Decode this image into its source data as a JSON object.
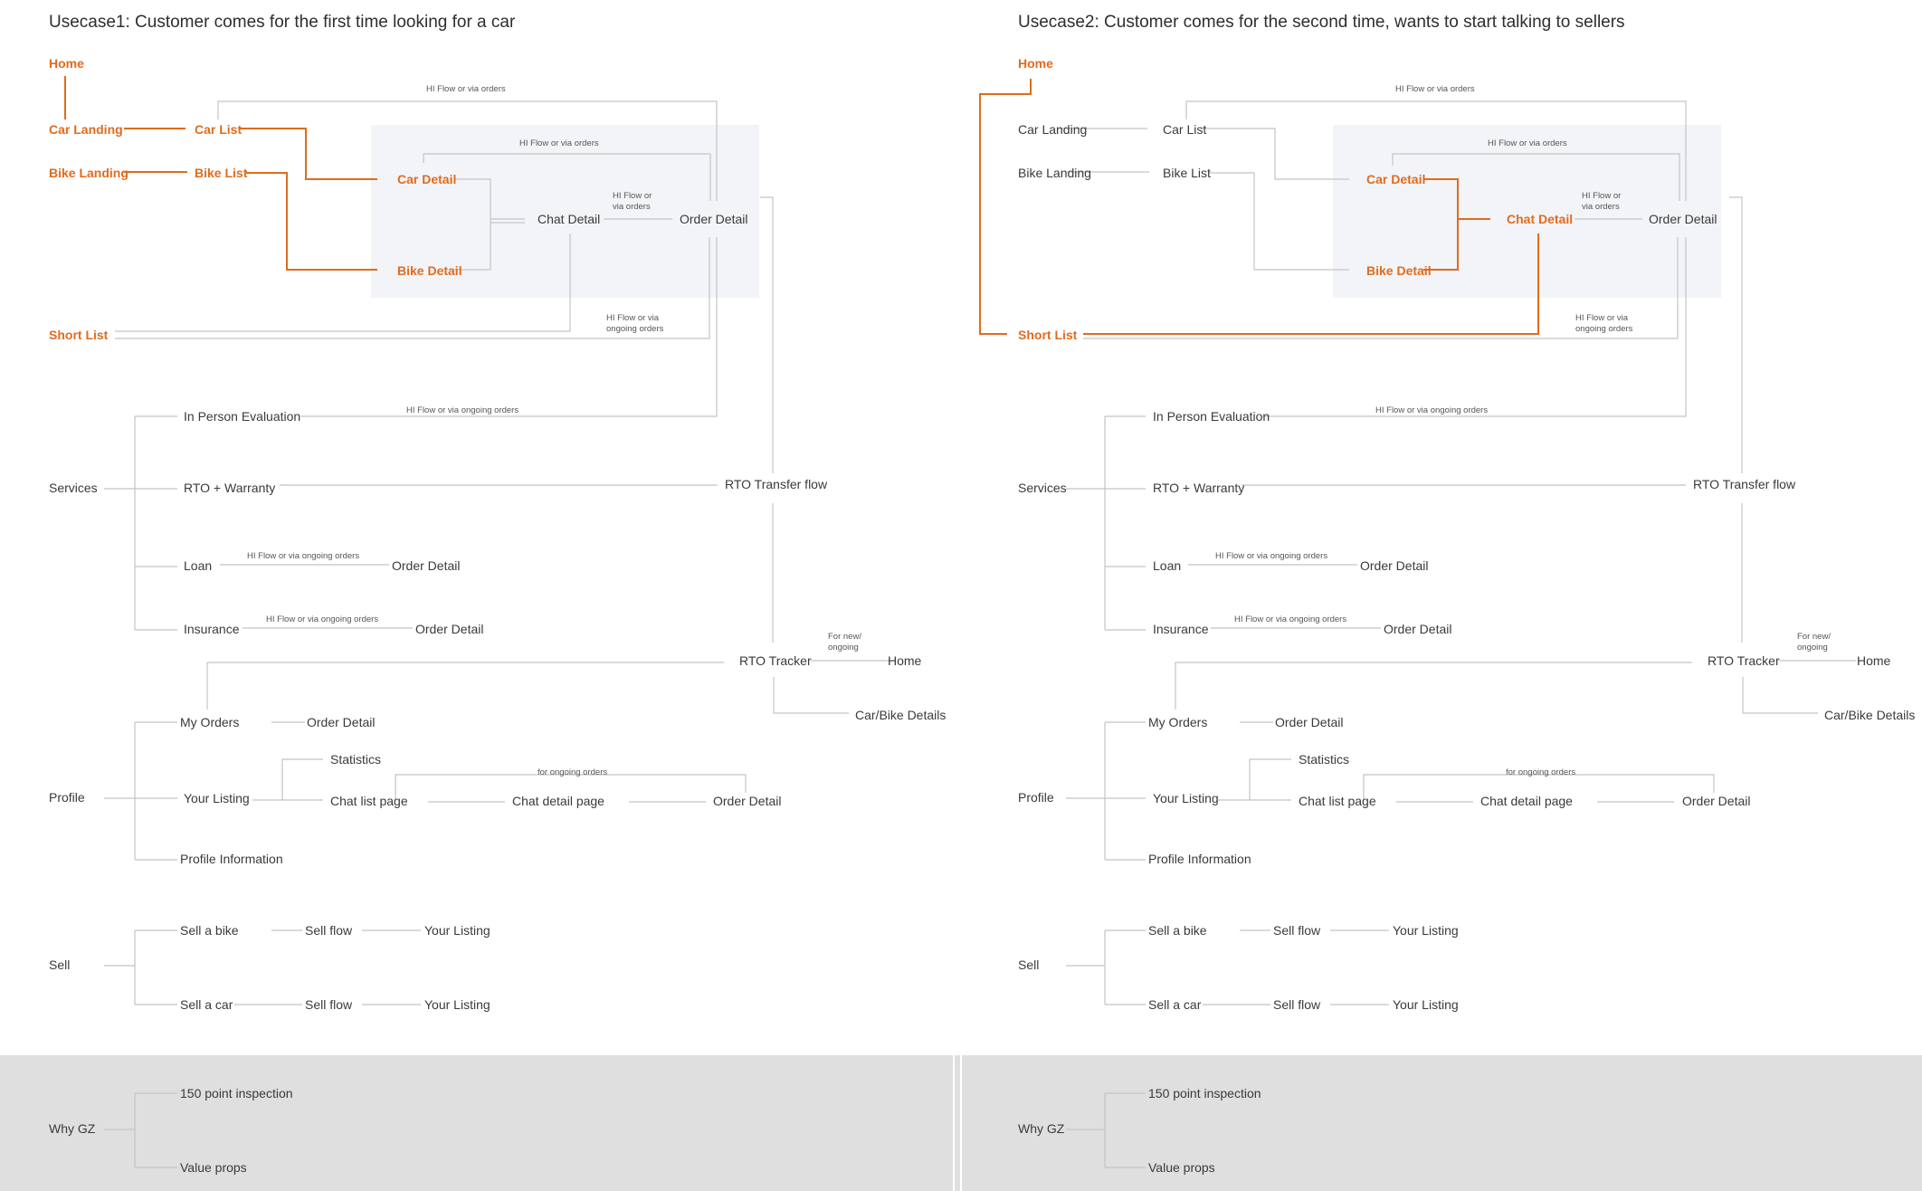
{
  "usecase1": {
    "title": "Usecase1: Customer comes for the first time looking for a car",
    "nodes": {
      "home": "Home",
      "car_landing": "Car Landing",
      "car_list": "Car List",
      "bike_landing": "Bike Landing",
      "bike_list": "Bike List",
      "car_detail": "Car Detail",
      "bike_detail": "Bike Detail",
      "chat_detail": "Chat Detail",
      "order_detail": "Order Detail",
      "short_list": "Short List",
      "services": "Services",
      "in_person_evaluation": "In Person Evaluation",
      "rto_warranty": "RTO + Warranty",
      "rto_transfer_flow": "RTO Transfer flow",
      "loan": "Loan",
      "loan_order_detail": "Order Detail",
      "insurance": "Insurance",
      "insurance_order_detail": "Order Detail",
      "rto_tracker": "RTO Tracker",
      "tracker_home": "Home",
      "car_bike_details": "Car/Bike Details",
      "profile": "Profile",
      "my_orders": "My Orders",
      "my_orders_order_detail": "Order Detail",
      "your_listing": "Your Listing",
      "statistics": "Statistics",
      "chat_list_page": "Chat list page",
      "chat_detail_page": "Chat detail page",
      "listing_order_detail": "Order Detail",
      "profile_information": "Profile Information",
      "sell": "Sell",
      "sell_a_bike": "Sell a bike",
      "sell_flow_bike": "Sell flow",
      "your_listing_bike": "Your Listing",
      "sell_a_car": "Sell a car",
      "sell_flow_car": "Sell flow",
      "your_listing_car": "Your Listing",
      "why_gz": "Why GZ",
      "point_inspection": "150 point inspection",
      "value_props": "Value props"
    },
    "edge_labels": {
      "hi_flow_top": "HI Flow or via orders",
      "hi_flow_box": "HI Flow or via orders",
      "hi_flow_chat_line1": "HI Flow or",
      "hi_flow_chat_line2": "via orders",
      "hi_flow_short_line1": "HI Flow or via",
      "hi_flow_short_line2": "ongoing orders",
      "hi_flow_eval": "HI Flow or via ongoing orders",
      "hi_flow_loan": "HI Flow or via ongoing orders",
      "hi_flow_insurance": "HI Flow or via ongoing orders",
      "for_new_line1": "For new/",
      "for_new_line2": "ongoing",
      "for_ongoing_orders": "for ongoing orders"
    }
  },
  "usecase2": {
    "title": "Usecase2: Customer comes for the second time, wants to start talking to sellers",
    "nodes": {
      "home": "Home",
      "car_landing": "Car Landing",
      "car_list": "Car List",
      "bike_landing": "Bike Landing",
      "bike_list": "Bike List",
      "car_detail": "Car Detail",
      "bike_detail": "Bike Detail",
      "chat_detail": "Chat Detail",
      "order_detail": "Order Detail",
      "short_list": "Short List",
      "services": "Services",
      "in_person_evaluation": "In Person Evaluation",
      "rto_warranty": "RTO + Warranty",
      "rto_transfer_flow": "RTO Transfer flow",
      "loan": "Loan",
      "loan_order_detail": "Order Detail",
      "insurance": "Insurance",
      "insurance_order_detail": "Order Detail",
      "rto_tracker": "RTO Tracker",
      "tracker_home": "Home",
      "car_bike_details": "Car/Bike Details",
      "profile": "Profile",
      "my_orders": "My Orders",
      "my_orders_order_detail": "Order Detail",
      "your_listing": "Your Listing",
      "statistics": "Statistics",
      "chat_list_page": "Chat list page",
      "chat_detail_page": "Chat detail page",
      "listing_order_detail": "Order Detail",
      "profile_information": "Profile Information",
      "sell": "Sell",
      "sell_a_bike": "Sell a bike",
      "sell_flow_bike": "Sell flow",
      "your_listing_bike": "Your Listing",
      "sell_a_car": "Sell a car",
      "sell_flow_car": "Sell flow",
      "your_listing_car": "Your Listing",
      "why_gz": "Why GZ",
      "point_inspection": "150 point inspection",
      "value_props": "Value props"
    },
    "edge_labels": {
      "hi_flow_top": "HI Flow or via orders",
      "hi_flow_box": "HI Flow or via orders",
      "hi_flow_chat_line1": "HI Flow or",
      "hi_flow_chat_line2": "via orders",
      "hi_flow_short_line1": "HI Flow or via",
      "hi_flow_short_line2": "ongoing orders",
      "hi_flow_eval": "HI Flow or via ongoing orders",
      "hi_flow_loan": "HI Flow or via ongoing orders",
      "hi_flow_insurance": "HI Flow or via ongoing orders",
      "for_new_line1": "For new/",
      "for_new_line2": "ongoing",
      "for_ongoing_orders": "for ongoing orders"
    }
  },
  "colors": {
    "highlight": "#e06c1d",
    "connector": "#c4c4c4",
    "hi_box_bg": "#f3f4f8",
    "bottom_band_bg": "#dfdfdf",
    "text": "#3a3a3a"
  }
}
